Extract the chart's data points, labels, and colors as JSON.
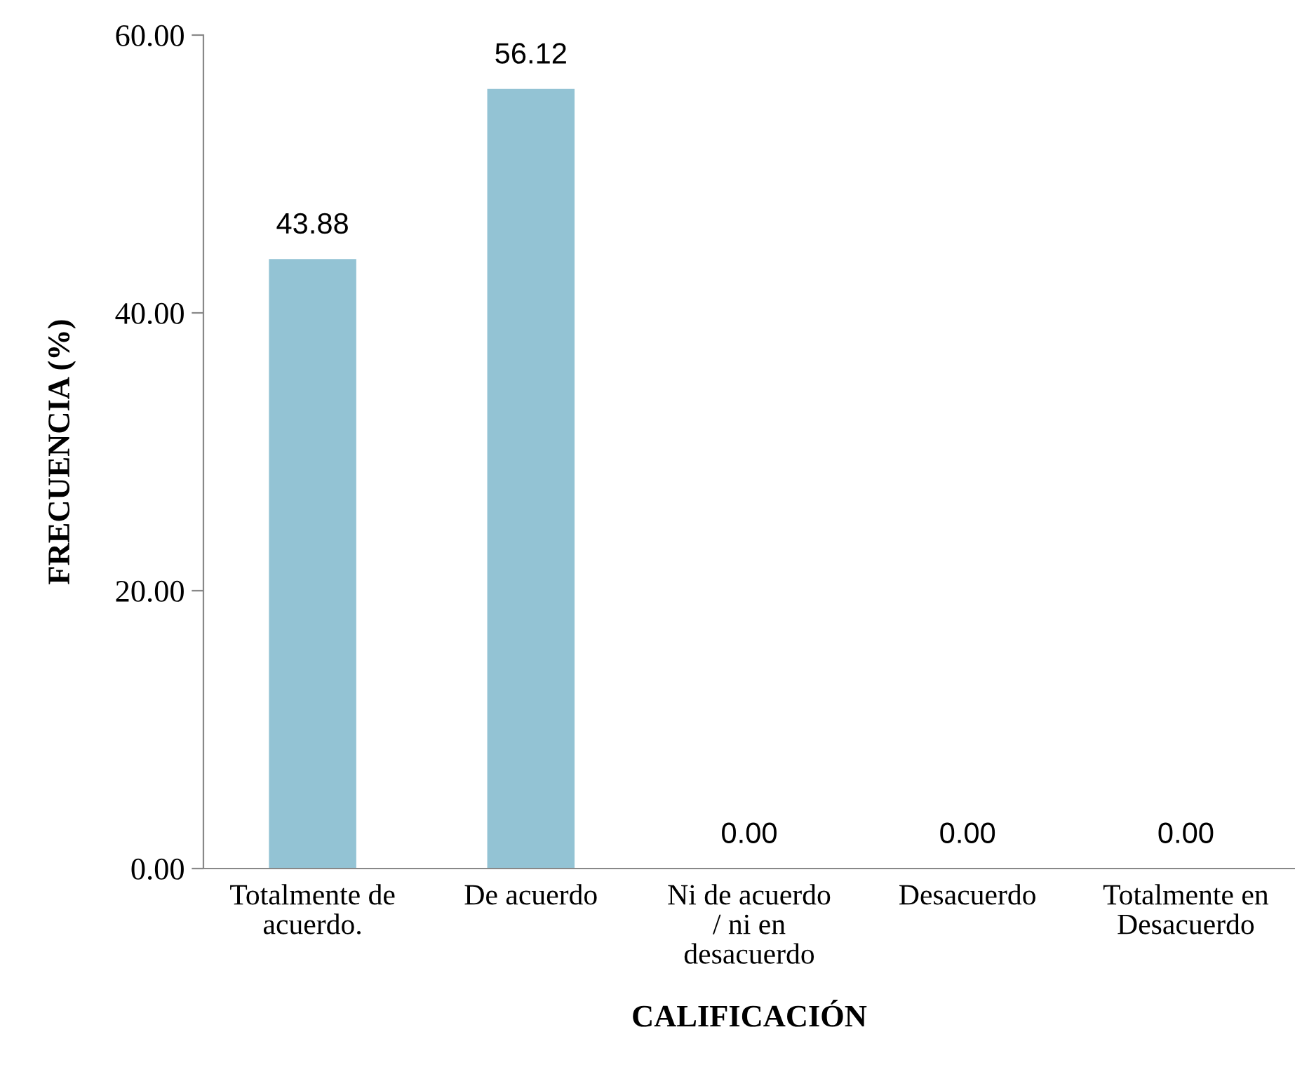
{
  "chart_data": {
    "type": "bar",
    "xlabel": "CALIFICACIÓN",
    "ylabel": "FRECUENCIA (%)",
    "categories": [
      "Totalmente de\nacuerdo.",
      "De acuerdo",
      "Ni de acuerdo\n/ ni en\ndesacuerdo",
      "Desacuerdo",
      "Totalmente en\nDesacuerdo"
    ],
    "values": [
      43.88,
      56.12,
      0,
      0,
      0
    ],
    "value_labels": [
      "43.88",
      "56.12",
      "0.00",
      "0.00",
      "0.00"
    ],
    "color": "#93c3d4",
    "ylim": [
      0,
      60
    ],
    "yticks": [
      {
        "value": 0,
        "label": "0.00"
      },
      {
        "value": 20,
        "label": "20.00"
      },
      {
        "value": 40,
        "label": "40.00"
      },
      {
        "value": 60,
        "label": "60.00"
      }
    ],
    "grid": false,
    "legend": false
  }
}
